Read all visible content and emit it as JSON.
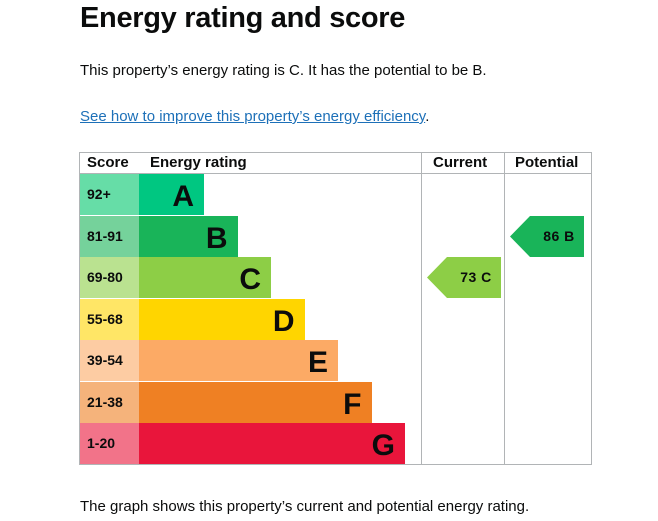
{
  "page": {
    "title": "Energy rating and score",
    "intro": "This property’s energy rating is C. It has the potential to be B.",
    "link_text": "See how to improve this property’s energy efficiency",
    "link_suffix": ".",
    "footer": "The graph shows this property’s current and potential energy rating."
  },
  "chart": {
    "headers": {
      "score": "Score",
      "rating": "Energy rating",
      "current": "Current",
      "potential": "Potential"
    },
    "bands": [
      {
        "score": "92+",
        "letter": "A",
        "color": "#00c781",
        "score_bg": "#66dda7"
      },
      {
        "score": "81-91",
        "letter": "B",
        "color": "#19b459",
        "score_bg": "#75d29b"
      },
      {
        "score": "69-80",
        "letter": "C",
        "color": "#8dce46",
        "score_bg": "#bae290"
      },
      {
        "score": "55-68",
        "letter": "D",
        "color": "#ffd500",
        "score_bg": "#ffe666"
      },
      {
        "score": "39-54",
        "letter": "E",
        "color": "#fcaa65",
        "score_bg": "#fdcca3"
      },
      {
        "score": "21-38",
        "letter": "F",
        "color": "#ef8023",
        "score_bg": "#f5b37b"
      },
      {
        "score": "1-20",
        "letter": "G",
        "color": "#e9153b",
        "score_bg": "#f27389"
      }
    ],
    "current": {
      "label": "73 C",
      "value": 73,
      "band": "C",
      "color": "#8dce46"
    },
    "potential": {
      "label": "86 B",
      "value": 86,
      "band": "B",
      "color": "#19b459"
    }
  }
}
